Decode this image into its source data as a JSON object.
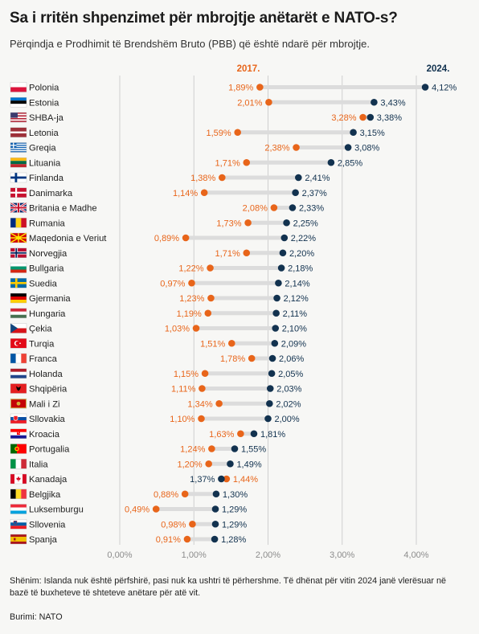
{
  "title": "Sa i rritën shpenzimet për mbrojtje anëtarët e NATO-s?",
  "subtitle": "Përqindja e Prodhimit të Brendshëm Bruto (PBB) që është ndarë për mbrojtje.",
  "note": "Shënim: Islanda nuk është përfshirë, pasi nuk ka ushtri të përhershme. Të dhënat për vitin 2024 janë vlerësuar në bazë të buxheteve të shteteve anëtare për atë vit.",
  "source": "Burimi: NATO",
  "colors": {
    "old": "#e8651a",
    "new": "#12324f",
    "bar": "#dcdcdc",
    "grid": "#cfcfcf",
    "background": "#f7f7f5"
  },
  "chart_data": {
    "type": "dumbbell",
    "title": "Sa i rritën shpenzimet për mbrojtje anëtarët e NATO-s?",
    "series": [
      {
        "name": "2017.",
        "color": "#e8651a"
      },
      {
        "name": "2024.",
        "color": "#12324f"
      }
    ],
    "categories": [
      "Polonia",
      "Estonia",
      "SHBA-ja",
      "Letonia",
      "Greqia",
      "Lituania",
      "Finlanda",
      "Danimarka",
      "Britania e Madhe",
      "Rumania",
      "Maqedonia e Veriut",
      "Norvegjia",
      "Bullgaria",
      "Suedia",
      "Gjermania",
      "Hungaria",
      "Çekia",
      "Turqia",
      "Franca",
      "Holanda",
      "Shqipëria",
      "Mali i Zi",
      "Sllovakia",
      "Kroacia",
      "Portugalia",
      "Italia",
      "Kanadaja",
      "Belgjika",
      "Luksemburgu",
      "Sllovenia",
      "Spanja"
    ],
    "flags": [
      "poland",
      "estonia",
      "usa",
      "latvia",
      "greece",
      "lithuania",
      "finland",
      "denmark",
      "uk",
      "romania",
      "north-macedonia",
      "norway",
      "bulgaria",
      "sweden",
      "germany",
      "hungary",
      "czechia",
      "turkey",
      "france",
      "netherlands",
      "albania",
      "montenegro",
      "slovakia",
      "croatia",
      "portugal",
      "italy",
      "canada",
      "belgium",
      "luxembourg",
      "slovenia",
      "spain"
    ],
    "values_2017": [
      1.89,
      2.01,
      3.28,
      1.59,
      2.38,
      1.71,
      1.38,
      1.14,
      2.08,
      1.73,
      0.89,
      1.71,
      1.22,
      0.97,
      1.23,
      1.19,
      1.03,
      1.51,
      1.78,
      1.15,
      1.11,
      1.34,
      1.1,
      1.63,
      1.24,
      1.2,
      1.44,
      0.88,
      0.49,
      0.98,
      0.91
    ],
    "values_2024": [
      4.12,
      3.43,
      3.38,
      3.15,
      3.08,
      2.85,
      2.41,
      2.37,
      2.33,
      2.25,
      2.22,
      2.2,
      2.18,
      2.14,
      2.12,
      2.11,
      2.1,
      2.09,
      2.06,
      2.05,
      2.03,
      2.02,
      2.0,
      1.81,
      1.55,
      1.49,
      1.37,
      1.3,
      1.29,
      1.29,
      1.28
    ],
    "labels_2017": [
      "1,89%",
      "2,01%",
      "3,28%",
      "1,59%",
      "2,38%",
      "1,71%",
      "1,38%",
      "1,14%",
      "2,08%",
      "1,73%",
      "0,89%",
      "1,71%",
      "1,22%",
      "0,97%",
      "1,23%",
      "1,19%",
      "1,03%",
      "1,51%",
      "1,78%",
      "1,15%",
      "1,11%",
      "1,34%",
      "1,10%",
      "1,63%",
      "1,24%",
      "1,20%",
      "1,44%",
      "0,88%",
      "0,49%",
      "0,98%",
      "0,91%"
    ],
    "labels_2024": [
      "4,12%",
      "3,43%",
      "3,38%",
      "3,15%",
      "3,08%",
      "2,85%",
      "2,41%",
      "2,37%",
      "2,33%",
      "2,25%",
      "2,22%",
      "2,20%",
      "2,18%",
      "2,14%",
      "2,12%",
      "2,11%",
      "2,10%",
      "2,09%",
      "2,06%",
      "2,05%",
      "2,03%",
      "2,02%",
      "2,00%",
      "1,81%",
      "1,55%",
      "1,49%",
      "1,37%",
      "1,30%",
      "1,29%",
      "1,29%",
      "1,28%"
    ],
    "x_ticks": [
      0,
      1,
      2,
      3,
      4
    ],
    "x_tick_labels": [
      "0,00%",
      "1,00%",
      "2,00%",
      "3,00%",
      "4,00%"
    ],
    "xlim": [
      0,
      4.3
    ],
    "grid": true,
    "legend": "top"
  }
}
